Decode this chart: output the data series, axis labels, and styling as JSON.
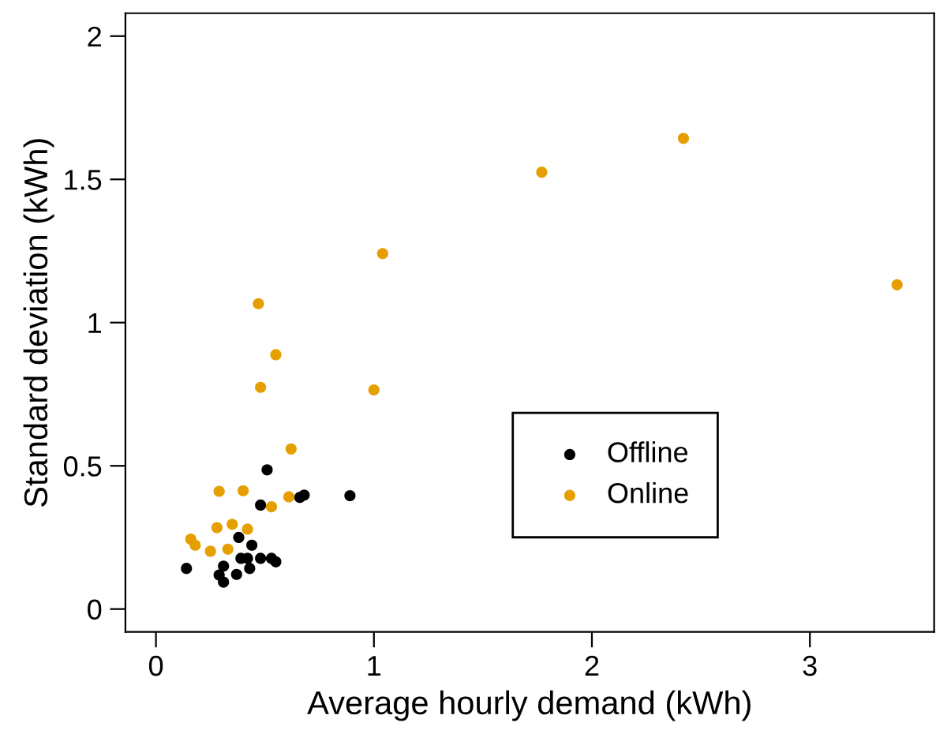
{
  "chart_data": {
    "type": "scatter",
    "xlabel": "Average hourly demand (kWh)",
    "ylabel": "Standard deviation (kWh)",
    "xlim": [
      -0.14,
      3.57
    ],
    "ylim": [
      -0.08,
      2.08
    ],
    "xticks": [
      0,
      1,
      2,
      3
    ],
    "yticks": [
      0,
      0.5,
      1,
      1.5,
      2
    ],
    "grid": false,
    "legend": "bottom right",
    "marker": "circle",
    "series": [
      {
        "name": "Offline",
        "color": "#000000",
        "x": [
          0.51,
          0.48,
          0.66,
          0.68,
          0.89,
          0.38,
          0.44,
          0.39,
          0.42,
          0.48,
          0.53,
          0.55,
          0.31,
          0.14,
          0.29,
          0.37,
          0.42,
          0.43,
          0.31
        ],
        "values": [
          0.486,
          0.363,
          0.39,
          0.398,
          0.396,
          0.25,
          0.223,
          0.177,
          0.177,
          0.177,
          0.177,
          0.165,
          0.15,
          0.142,
          0.119,
          0.121,
          null,
          0.142,
          0.094
        ]
      },
      {
        "name": "Online",
        "color": "#e69f00",
        "x": [
          0.47,
          0.55,
          0.48,
          1.0,
          1.04,
          1.77,
          2.42,
          3.4,
          0.62,
          0.29,
          0.4,
          0.61,
          0.53,
          0.28,
          0.35,
          0.42,
          0.16,
          0.18,
          0.25,
          0.33
        ],
        "values": [
          1.066,
          0.888,
          0.774,
          0.765,
          1.241,
          1.525,
          1.643,
          1.132,
          0.559,
          0.411,
          0.413,
          0.392,
          0.357,
          0.284,
          0.296,
          0.279,
          0.244,
          0.223,
          0.202,
          0.209
        ]
      }
    ]
  }
}
